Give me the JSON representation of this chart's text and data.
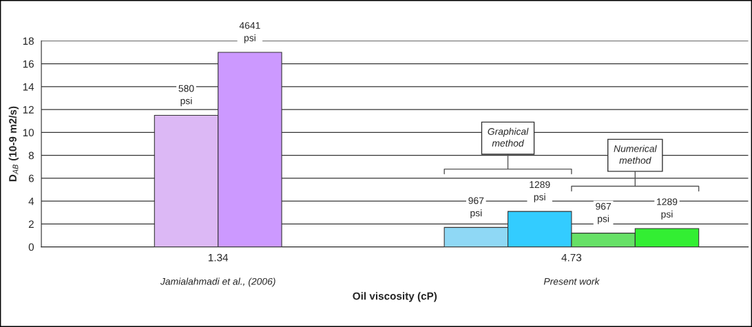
{
  "chart_data": {
    "type": "bar",
    "xlabel": "Oil viscosity (cP)",
    "ylabel": "D$_{AB}$ (10-9 m2/s)",
    "categories": [
      "1.34",
      "4.73"
    ],
    "series": [
      {
        "name": "580 psi",
        "color": "#dcb8f5",
        "values": [
          11.5,
          null
        ]
      },
      {
        "name": "4641 psi",
        "color": "#cc99ff",
        "values": [
          17.0,
          null
        ]
      },
      {
        "name": "967 psi",
        "color": "#8fd8f5",
        "values": [
          null,
          1.7
        ]
      },
      {
        "name": "1289 psi",
        "color": "#33ccff",
        "values": [
          null,
          3.1
        ]
      },
      {
        "name": "967 psi",
        "color": "#66e066",
        "values": [
          null,
          1.2
        ]
      },
      {
        "name": "1289 psi",
        "color": "#33ee33",
        "values": [
          null,
          1.6
        ]
      }
    ],
    "annotations": [
      "Jamialahmadi et al., (2006)",
      "Present work",
      "Graphical method",
      "Numerical method"
    ],
    "ylim": [
      0,
      18
    ],
    "yticks": [
      0,
      2,
      4,
      6,
      8,
      10,
      12,
      14,
      16,
      18
    ],
    "grid": "y",
    "legend": false
  }
}
